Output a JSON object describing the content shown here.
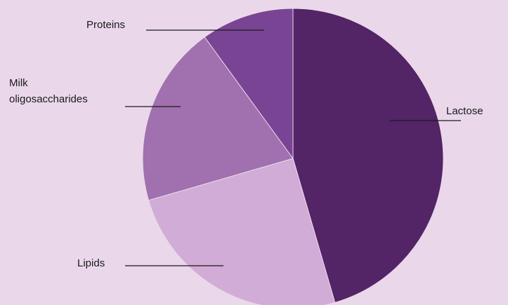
{
  "chart_data": {
    "type": "pie",
    "title": "",
    "start_angle_deg": 0,
    "direction": "clockwise",
    "slices": [
      {
        "label_lines": [
          "Lactose"
        ],
        "value": 45.5,
        "color": "#532466"
      },
      {
        "label_lines": [
          "Lipids"
        ],
        "value": 25.0,
        "color": "#d1acd6"
      },
      {
        "label_lines": [
          "Milk",
          "oligosaccharides"
        ],
        "value": 19.5,
        "color": "#a071ae"
      },
      {
        "label_lines": [
          "Proteins"
        ],
        "value": 10.0,
        "color": "#7a4495"
      }
    ]
  },
  "colors": {
    "background": "#ead8ea",
    "text": "#1a1a1a"
  }
}
